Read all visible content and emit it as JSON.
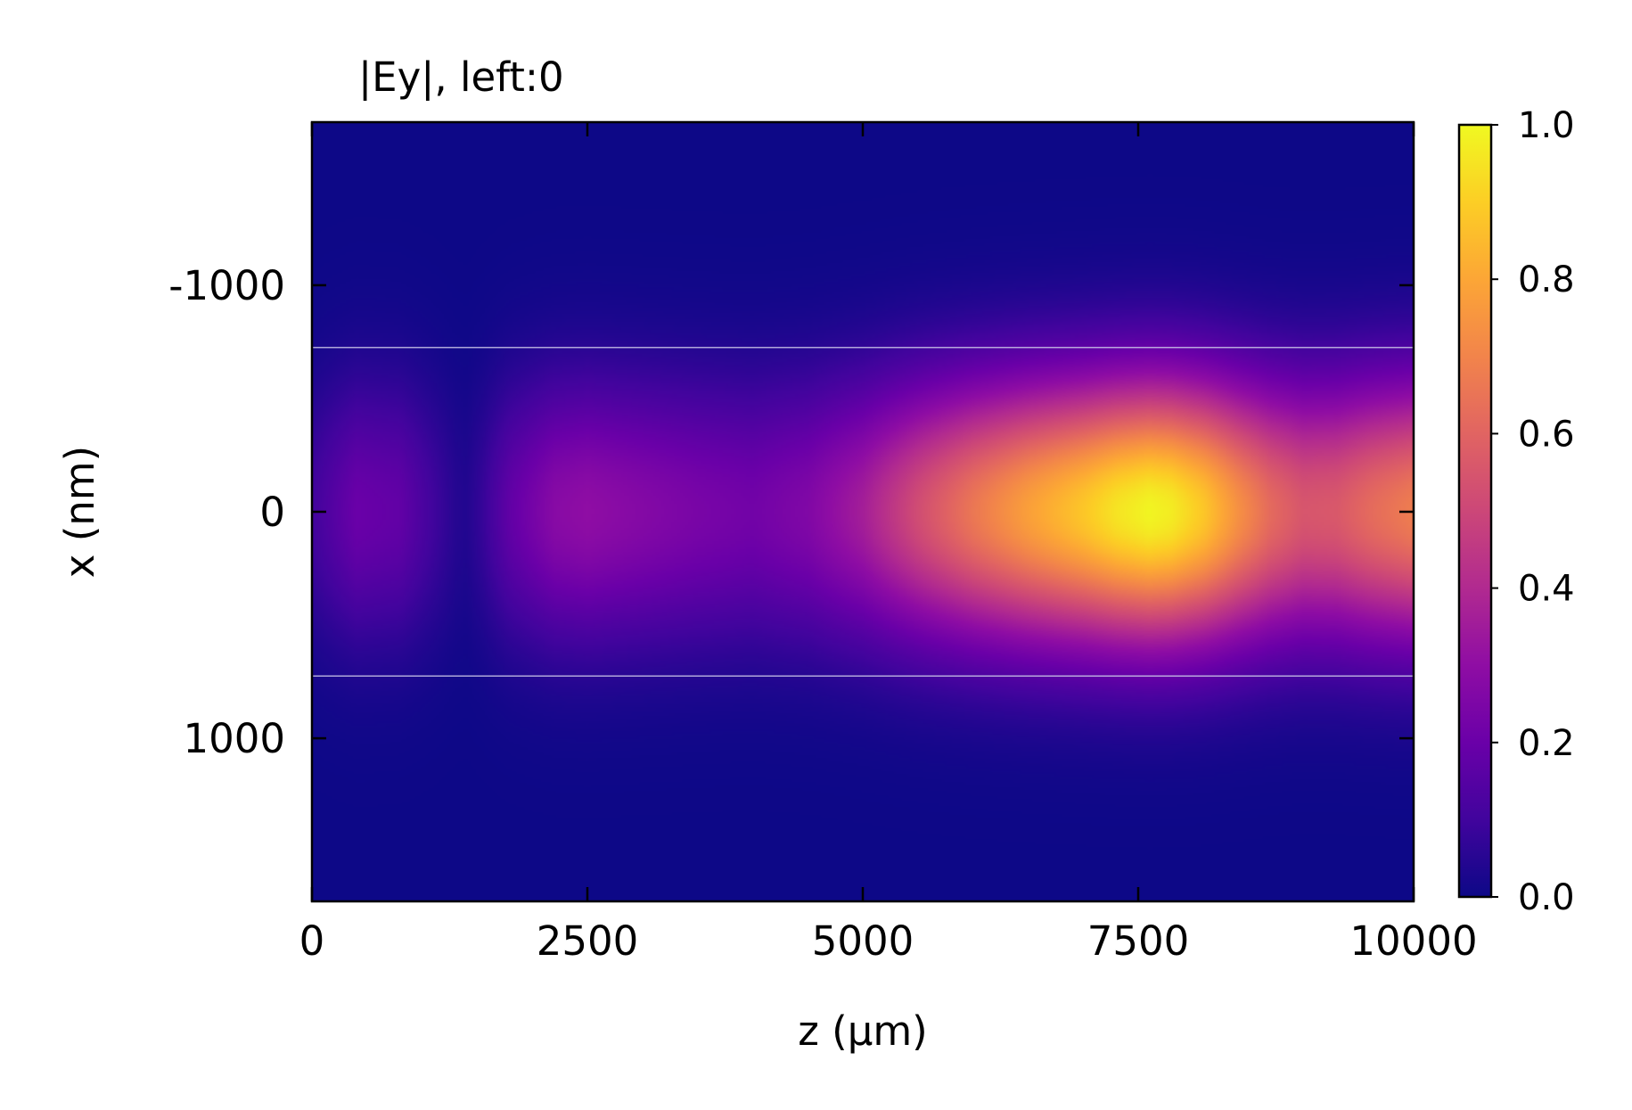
{
  "chart_data": {
    "type": "heatmap",
    "title": "|Ey|, left:0",
    "xlabel": "z (µm)",
    "ylabel": "x (nm)",
    "xlim": [
      0,
      10000
    ],
    "ylim": [
      1720,
      -1720
    ],
    "y_inverted": true,
    "x_ticks": [
      0,
      2500,
      5000,
      7500,
      10000
    ],
    "x_tick_labels": [
      "0",
      "2500",
      "5000",
      "7500",
      "10000"
    ],
    "y_ticks": [
      -1000,
      0,
      1000
    ],
    "y_tick_labels": [
      "-1000",
      "0",
      "1000"
    ],
    "colormap": "plasma",
    "colorbar": {
      "range": [
        0.0,
        1.0
      ],
      "ticks": [
        0.0,
        0.2,
        0.4,
        0.6,
        0.8,
        1.0
      ],
      "tick_labels": [
        "0.0",
        "0.2",
        "0.4",
        "0.6",
        "0.8",
        "1.0"
      ]
    },
    "waveguide_boundaries_x": [
      -725,
      725
    ],
    "field_along_z_at_center": {
      "z": [
        0,
        400,
        800,
        1100,
        1300,
        1400,
        1550,
        1800,
        2200,
        2500,
        3000,
        3500,
        4000,
        4500,
        5000,
        5500,
        6000,
        6500,
        7000,
        7300,
        7600,
        7800,
        8100,
        8400,
        8700,
        9000,
        9300,
        9600,
        10000
      ],
      "value": [
        0.1,
        0.2,
        0.18,
        0.1,
        0.05,
        0.04,
        0.08,
        0.18,
        0.28,
        0.3,
        0.27,
        0.24,
        0.22,
        0.26,
        0.36,
        0.52,
        0.66,
        0.78,
        0.88,
        0.95,
        0.99,
        0.97,
        0.88,
        0.74,
        0.62,
        0.55,
        0.56,
        0.62,
        0.68
      ]
    },
    "mode_width_nm": 680,
    "grid": false
  }
}
